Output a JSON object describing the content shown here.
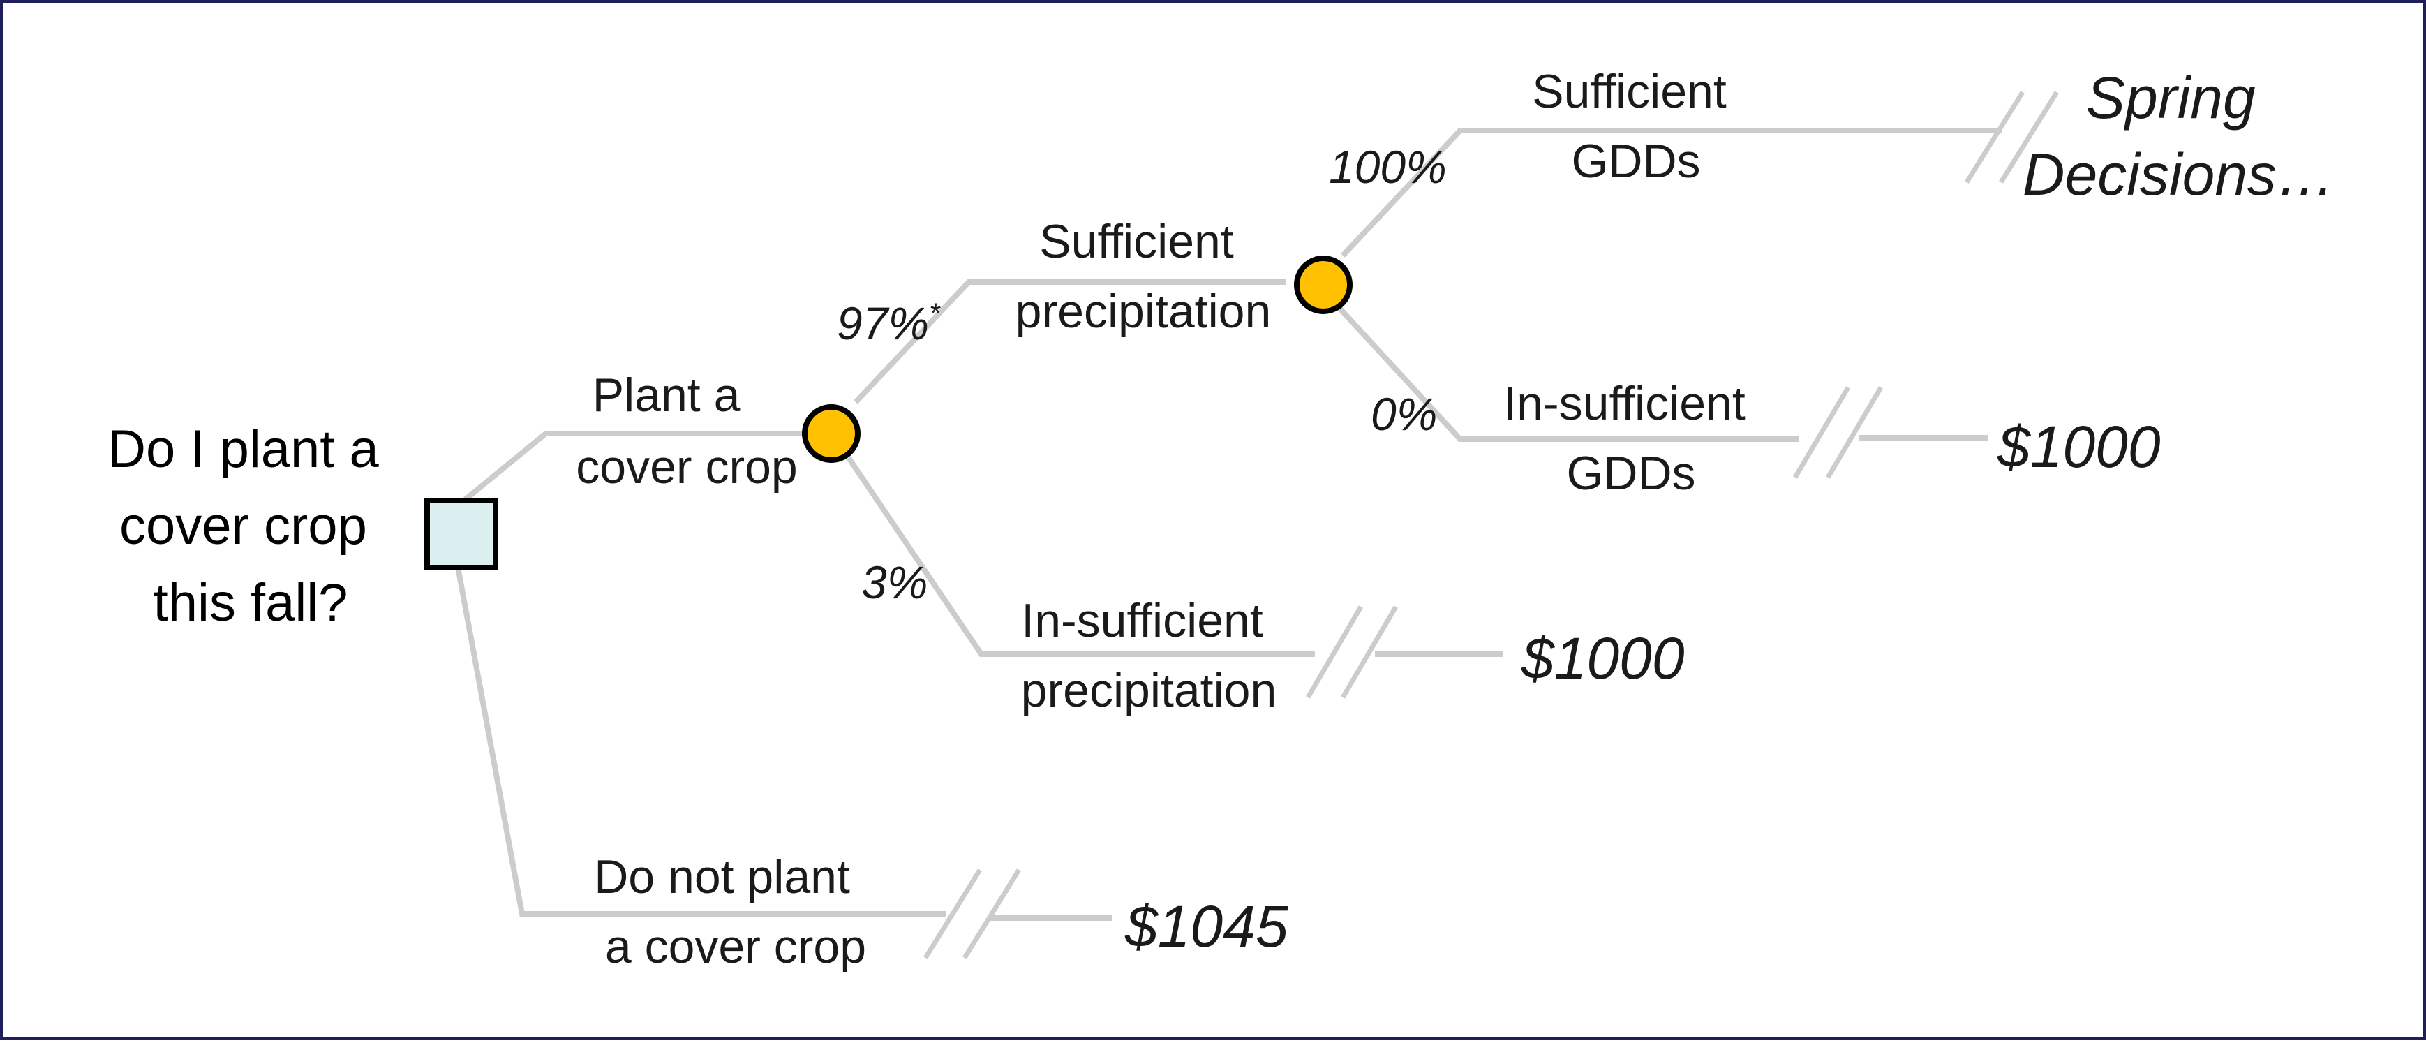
{
  "question": [
    "Do I plant a",
    "cover crop",
    "this fall?"
  ],
  "branches": {
    "plant": [
      "Plant a",
      "cover crop"
    ],
    "do_not_plant": [
      "Do not plant",
      "a cover crop"
    ],
    "sufficient_precip": [
      "Sufficient",
      "precipitation"
    ],
    "insufficient_precip": [
      "In-sufficient",
      "precipitation"
    ],
    "sufficient_gdd": [
      "Sufficient",
      "GDDs"
    ],
    "insufficient_gdd": [
      "In-sufficient",
      "GDDs"
    ]
  },
  "probabilities": {
    "sufficient_precip": "97%",
    "sufficient_precip_mark": "*",
    "insufficient_precip": "3%",
    "sufficient_gdd": "100%",
    "insufficient_gdd": "0%"
  },
  "outcomes": {
    "do_not_plant": "$1045",
    "insufficient_precip": "$1000",
    "insufficient_gdd": "$1000",
    "spring": [
      "Spring",
      "Decisions…"
    ]
  },
  "colors": {
    "border": "#1f1f5c",
    "edge": "#cccccc",
    "decision_fill": "#dbeef0",
    "chance_fill": "#ffc000"
  }
}
